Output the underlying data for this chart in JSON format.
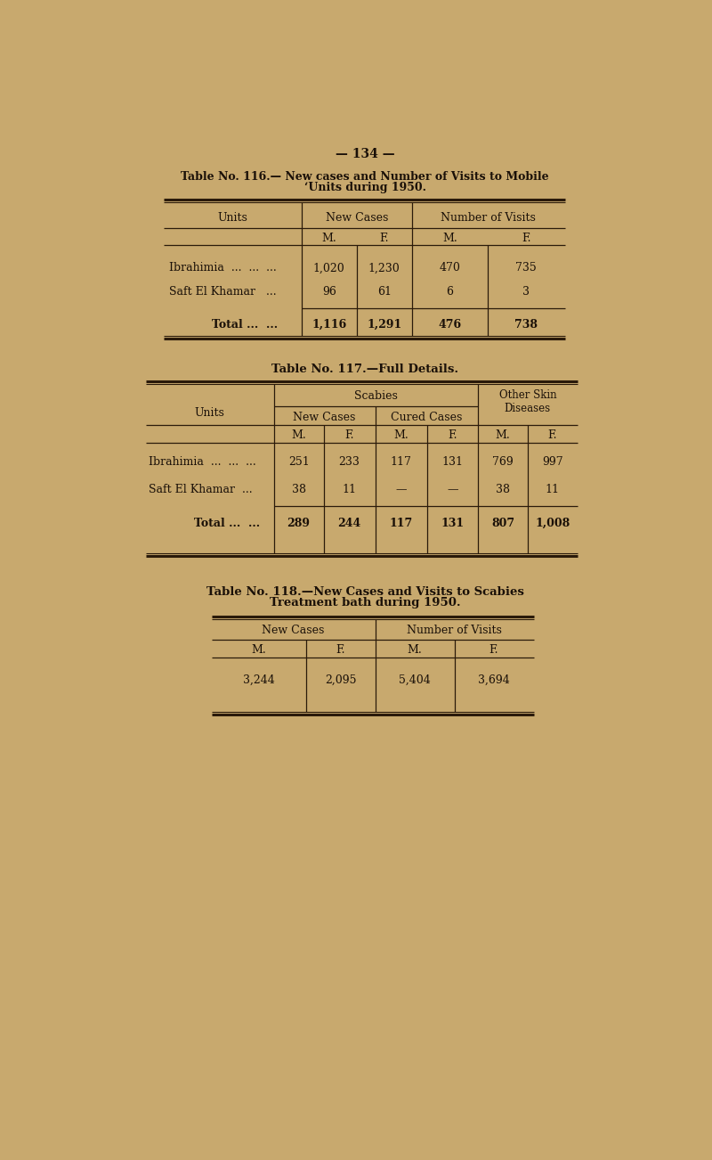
{
  "bg_color": "#c8a96e",
  "text_color": "#1a1008",
  "page_number": "— 134 —",
  "table116": {
    "title_line1": "Table No. 116.— New cases and Number of Visits to Mobile",
    "title_line2": "‘Units during 1950.",
    "rows": [
      [
        "Ibrahimia  ...  ...  ...",
        "1,020",
        "1,230",
        "470",
        "735"
      ],
      [
        "Saft El Khamar   ...",
        "96",
        "61",
        "6",
        "3"
      ]
    ],
    "total_row": [
      "Total ...  ...",
      "1,116",
      "1,291",
      "476",
      "738"
    ]
  },
  "table117": {
    "title": "Table No. 117.—Full Details.",
    "rows": [
      [
        "Ibrahimia  ...  ...  ...",
        "251",
        "233",
        "117",
        "131",
        "769",
        "997"
      ],
      [
        "Saft El Khamar  ...",
        "38",
        "11",
        "—",
        "—",
        "38",
        "11"
      ]
    ],
    "total_row": [
      "Total ...  ...",
      "289",
      "244",
      "117",
      "131",
      "807",
      "1,008"
    ]
  },
  "table118": {
    "title_line1": "Table No. 118.—New Cases and Visits to Scabies",
    "title_line2": "Treatment bath during 1950.",
    "data_row": [
      "3,244",
      "2,095",
      "5,404",
      "3,694"
    ]
  }
}
